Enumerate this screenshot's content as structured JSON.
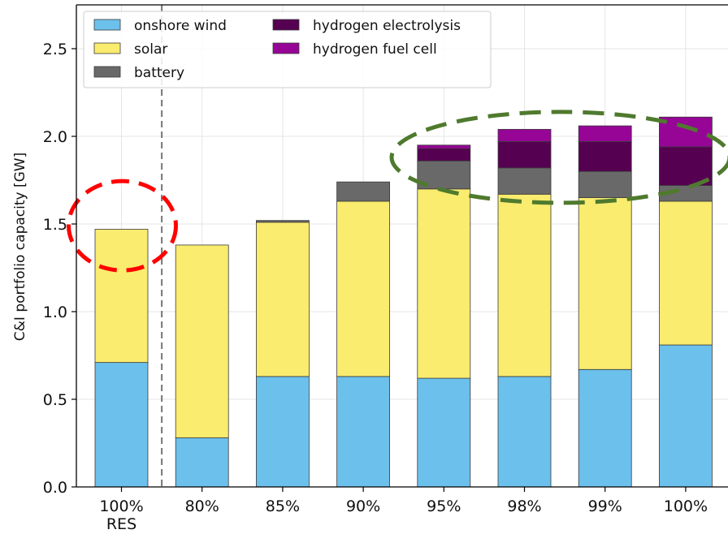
{
  "chart_data": {
    "type": "bar",
    "stacked": true,
    "categories": [
      {
        "line1": "100%",
        "line2": "RES"
      },
      {
        "line1": "80%",
        "line2": ""
      },
      {
        "line1": "85%",
        "line2": ""
      },
      {
        "line1": "90%",
        "line2": ""
      },
      {
        "line1": "95%",
        "line2": ""
      },
      {
        "line1": "98%",
        "line2": ""
      },
      {
        "line1": "99%",
        "line2": ""
      },
      {
        "line1": "100%",
        "line2": ""
      }
    ],
    "series": [
      {
        "name": "onshore wind",
        "color": "#6CC0EC",
        "values": [
          0.71,
          0.28,
          0.63,
          0.63,
          0.62,
          0.63,
          0.67,
          0.81
        ]
      },
      {
        "name": "solar",
        "color": "#F9EC6E",
        "values": [
          0.76,
          1.1,
          0.88,
          1.0,
          1.08,
          1.04,
          0.98,
          0.82
        ]
      },
      {
        "name": "battery",
        "color": "#696969",
        "values": [
          0.0,
          0.0,
          0.01,
          0.11,
          0.16,
          0.15,
          0.15,
          0.09
        ]
      },
      {
        "name": "hydrogen electrolysis",
        "color": "#560052",
        "values": [
          0.0,
          0.0,
          0.0,
          0.0,
          0.07,
          0.15,
          0.17,
          0.22
        ]
      },
      {
        "name": "hydrogen fuel cell",
        "color": "#960596",
        "values": [
          0.0,
          0.0,
          0.0,
          0.0,
          0.02,
          0.07,
          0.09,
          0.17
        ]
      }
    ],
    "xlabel": "",
    "ylabel": "C&I portfolio capacity [GW]",
    "ylim": [
      0,
      2.75
    ],
    "yticks": [
      "0.0",
      "0.5",
      "1.0",
      "1.5",
      "2.0",
      "2.5"
    ],
    "grid": true,
    "legend": {
      "placement": "top-left",
      "columns": 2
    },
    "annotations": [
      {
        "type": "dashed-vertical-line",
        "between_categories": [
          0,
          1
        ],
        "color": "#808080"
      },
      {
        "type": "dashed-ellipse",
        "color": "#FF0000",
        "around": "top of 100% RES bar"
      },
      {
        "type": "dashed-ellipse",
        "color": "#4F7A2E",
        "around": "hydrogen segments of 95%–100% bars"
      }
    ]
  }
}
